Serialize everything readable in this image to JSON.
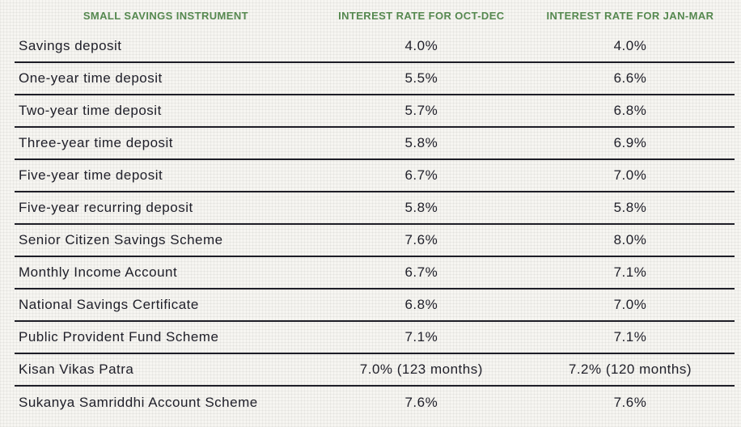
{
  "title": "Small savings instrument interest rates table",
  "colors": {
    "header_green": "#55884f",
    "row_text": "#20202a",
    "divider": "#1e1e27",
    "background": "#f6f5f1"
  },
  "chart_data": {
    "type": "table",
    "columns": [
      "SMALL SAVINGS INSTRUMENT",
      "INTEREST RATE FOR OCT-DEC",
      "INTEREST RATE FOR JAN-MAR"
    ],
    "rows": [
      [
        "Savings deposit",
        "4.0%",
        "4.0%"
      ],
      [
        "One-year time deposit",
        "5.5%",
        "6.6%"
      ],
      [
        "Two-year time deposit",
        "5.7%",
        "6.8%"
      ],
      [
        "Three-year time deposit",
        "5.8%",
        "6.9%"
      ],
      [
        "Five-year time deposit",
        "6.7%",
        "7.0%"
      ],
      [
        "Five-year recurring deposit",
        "5.8%",
        "5.8%"
      ],
      [
        "Senior Citizen Savings Scheme",
        "7.6%",
        "8.0%"
      ],
      [
        "Monthly Income Account",
        "6.7%",
        "7.1%"
      ],
      [
        "National Savings Certificate",
        "6.8%",
        "7.0%"
      ],
      [
        "Public Provident Fund Scheme",
        "7.1%",
        "7.1%"
      ],
      [
        "Kisan Vikas Patra",
        "7.0% (123 months)",
        "7.2% (120 months)"
      ],
      [
        "Sukanya Samriddhi Account Scheme",
        "7.6%",
        "7.6%"
      ]
    ]
  }
}
